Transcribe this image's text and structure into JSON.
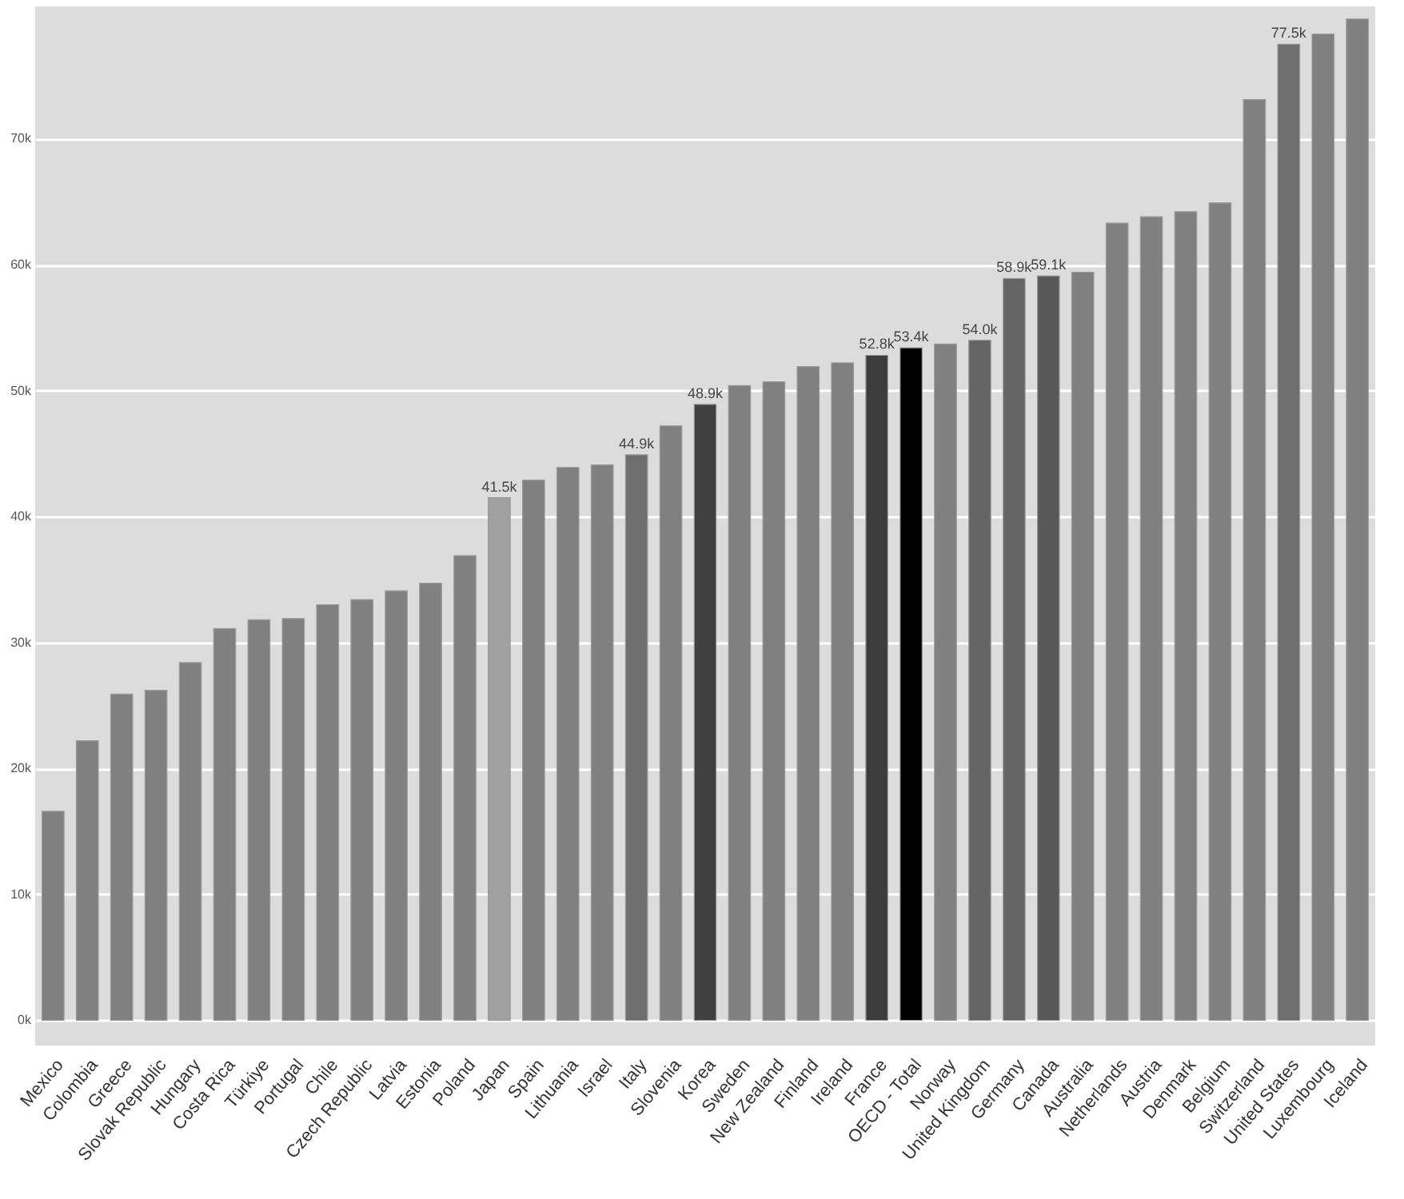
{
  "chart_data": {
    "type": "bar",
    "categories": [
      "Mexico",
      "Colombia",
      "Greece",
      "Slovak Republic",
      "Hungary",
      "Costa Rica",
      "Türkiye",
      "Portugal",
      "Chile",
      "Czech Republic",
      "Latvia",
      "Estonia",
      "Poland",
      "Japan",
      "Spain",
      "Lithuania",
      "Israel",
      "Italy",
      "Slovenia",
      "Korea",
      "Sweden",
      "New Zealand",
      "Finland",
      "Ireland",
      "France",
      "OECD - Total",
      "Norway",
      "United Kingdom",
      "Germany",
      "Canada",
      "Australia",
      "Netherlands",
      "Austria",
      "Denmark",
      "Belgium",
      "Switzerland",
      "United States",
      "Luxembourg",
      "Iceland"
    ],
    "values": [
      16600,
      22200,
      25900,
      26200,
      28400,
      31100,
      31800,
      31900,
      33000,
      33400,
      34100,
      34700,
      36900,
      41500,
      42900,
      43900,
      44100,
      44900,
      47200,
      48900,
      50400,
      50700,
      51900,
      52200,
      52800,
      53400,
      53700,
      54000,
      58900,
      59100,
      59400,
      63300,
      63800,
      64200,
      64900,
      73100,
      77500,
      78300,
      79500
    ],
    "colors": [
      "#808080",
      "#808080",
      "#808080",
      "#808080",
      "#808080",
      "#808080",
      "#808080",
      "#808080",
      "#808080",
      "#808080",
      "#808080",
      "#808080",
      "#808080",
      "#a0a0a0",
      "#808080",
      "#808080",
      "#808080",
      "#6e6e6e",
      "#808080",
      "#404040",
      "#808080",
      "#808080",
      "#808080",
      "#808080",
      "#3c3c3c",
      "#000000",
      "#808080",
      "#646464",
      "#646464",
      "#585858",
      "#808080",
      "#808080",
      "#808080",
      "#808080",
      "#808080",
      "#808080",
      "#6e6e6e",
      "#808080",
      "#808080"
    ],
    "value_labels": [
      null,
      null,
      null,
      null,
      null,
      null,
      null,
      null,
      null,
      null,
      null,
      null,
      null,
      "41.5k",
      null,
      null,
      null,
      "44.9k",
      null,
      "48.9k",
      null,
      null,
      null,
      null,
      "52.8k",
      "53.4k",
      null,
      "54.0k",
      "58.9k",
      "59.1k",
      null,
      null,
      null,
      null,
      null,
      null,
      "77.5k",
      null,
      null
    ],
    "ylim": [
      -2000,
      80500
    ],
    "yticks": [
      {
        "value": 0,
        "label": "0k"
      },
      {
        "value": 10000,
        "label": "10k"
      },
      {
        "value": 20000,
        "label": "20k"
      },
      {
        "value": 30000,
        "label": "30k"
      },
      {
        "value": 40000,
        "label": "40k"
      },
      {
        "value": 50000,
        "label": "50k"
      },
      {
        "value": 60000,
        "label": "60k"
      },
      {
        "value": 70000,
        "label": "70k"
      }
    ],
    "grid": "y"
  }
}
